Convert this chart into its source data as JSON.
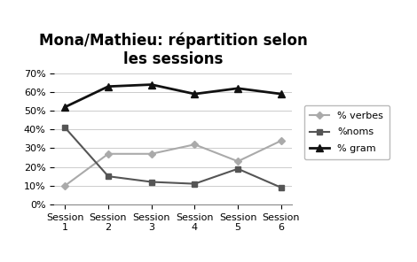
{
  "title": "Mona/Mathieu: répartition selon\nles sessions",
  "sessions": [
    "Session\n1",
    "Session\n2",
    "Session\n3",
    "Session\n4",
    "Session\n5",
    "Session\n6"
  ],
  "verbes": [
    0.1,
    0.27,
    0.27,
    0.32,
    0.23,
    0.34
  ],
  "noms": [
    0.41,
    0.15,
    0.12,
    0.11,
    0.19,
    0.09
  ],
  "gram": [
    0.52,
    0.63,
    0.64,
    0.59,
    0.62,
    0.59
  ],
  "verbes_color": "#aaaaaa",
  "noms_color": "#555555",
  "gram_color": "#111111",
  "ylim": [
    0,
    0.7
  ],
  "yticks": [
    0.0,
    0.1,
    0.2,
    0.3,
    0.4,
    0.5,
    0.6,
    0.7
  ],
  "legend_labels": [
    "% verbes",
    "%noms",
    "% gram"
  ],
  "title_fontsize": 12,
  "legend_fontsize": 8,
  "tick_fontsize": 8
}
